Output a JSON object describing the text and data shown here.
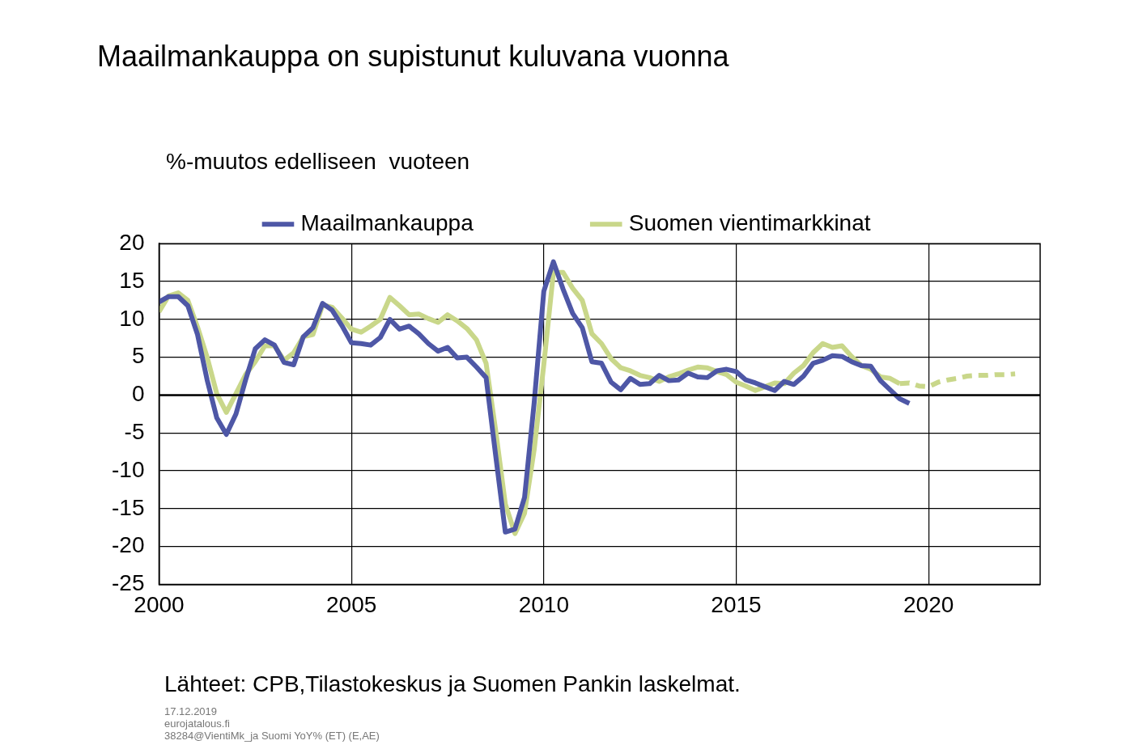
{
  "chart_data": {
    "type": "line",
    "title": "Maailmankauppa on supistunut kuluvana vuonna",
    "ylabel": "%-muutos edelliseen  vuoteen",
    "xlim": [
      2000,
      2022.9
    ],
    "xticks": [
      2000,
      2005,
      2010,
      2015,
      2020
    ],
    "ylim": [
      -25,
      20
    ],
    "yticks": [
      -25,
      -20,
      -15,
      -10,
      -5,
      0,
      5,
      10,
      15,
      20
    ],
    "grid": true,
    "legend": "top",
    "marker": "none",
    "series": [
      {
        "name": "Maailmankauppa",
        "color": "#4e57a6",
        "x": [
          2000,
          2000.25,
          2000.5,
          2000.75,
          2001,
          2001.25,
          2001.5,
          2001.75,
          2002,
          2002.25,
          2002.5,
          2002.75,
          2003,
          2003.25,
          2003.5,
          2003.75,
          2004,
          2004.25,
          2004.5,
          2004.75,
          2005,
          2005.25,
          2005.5,
          2005.75,
          2006,
          2006.25,
          2006.5,
          2006.75,
          2007,
          2007.25,
          2007.5,
          2007.75,
          2008,
          2008.25,
          2008.5,
          2008.75,
          2009,
          2009.25,
          2009.5,
          2009.75,
          2010,
          2010.25,
          2010.5,
          2010.75,
          2011,
          2011.25,
          2011.5,
          2011.75,
          2012,
          2012.25,
          2012.5,
          2012.75,
          2013,
          2013.25,
          2013.5,
          2013.75,
          2014,
          2014.25,
          2014.5,
          2014.75,
          2015,
          2015.25,
          2015.5,
          2015.75,
          2016,
          2016.25,
          2016.5,
          2016.75,
          2017,
          2017.25,
          2017.5,
          2017.75,
          2018,
          2018.25,
          2018.5,
          2018.75,
          2019,
          2019.25,
          2019.5
        ],
        "values": [
          12.3,
          13.0,
          13.0,
          11.8,
          8.0,
          2.0,
          -3.0,
          -5.2,
          -2.5,
          2.0,
          6.1,
          7.3,
          6.6,
          4.3,
          4.0,
          7.7,
          8.9,
          12.1,
          11.2,
          9.2,
          6.9,
          6.8,
          6.6,
          7.6,
          10.0,
          8.7,
          9.1,
          8.1,
          6.8,
          5.8,
          6.3,
          4.9,
          5.0,
          3.7,
          2.3,
          -8.0,
          -18.1,
          -17.7,
          -13.5,
          -1.0,
          13.7,
          17.6,
          14.0,
          10.8,
          8.9,
          4.4,
          4.2,
          1.7,
          0.7,
          2.2,
          1.4,
          1.5,
          2.6,
          1.9,
          2.0,
          2.9,
          2.4,
          2.3,
          3.2,
          3.4,
          3.1,
          2.0,
          1.6,
          1.1,
          0.6,
          1.8,
          1.4,
          2.5,
          4.2,
          4.6,
          5.2,
          5.1,
          4.4,
          3.9,
          3.8,
          1.9,
          0.7,
          -0.5,
          -1.1
        ]
      },
      {
        "name": "Suomen vientimarkkinat",
        "color": "#c9d78a",
        "x": [
          2000,
          2000.25,
          2000.5,
          2000.75,
          2001,
          2001.25,
          2001.5,
          2001.75,
          2002,
          2002.25,
          2002.5,
          2002.75,
          2003,
          2003.25,
          2003.5,
          2003.75,
          2004,
          2004.25,
          2004.5,
          2004.75,
          2005,
          2005.25,
          2005.5,
          2005.75,
          2006,
          2006.25,
          2006.5,
          2006.75,
          2007,
          2007.25,
          2007.5,
          2007.75,
          2008,
          2008.25,
          2008.5,
          2008.75,
          2009,
          2009.25,
          2009.5,
          2009.75,
          2010,
          2010.25,
          2010.5,
          2010.75,
          2011,
          2011.25,
          2011.5,
          2011.75,
          2012,
          2012.25,
          2012.5,
          2012.75,
          2013,
          2013.25,
          2013.5,
          2013.75,
          2014,
          2014.25,
          2014.5,
          2014.75,
          2015,
          2015.25,
          2015.5,
          2015.75,
          2016,
          2016.25,
          2016.5,
          2016.75,
          2017,
          2017.25,
          2017.5,
          2017.75,
          2018,
          2018.25,
          2018.5,
          2018.75,
          2019,
          2019.25
        ],
        "values": [
          11.0,
          13.1,
          13.5,
          12.5,
          9.0,
          5.0,
          0.2,
          -2.3,
          0.2,
          2.7,
          4.4,
          6.5,
          6.5,
          4.6,
          5.6,
          7.7,
          8.0,
          11.9,
          11.6,
          10.2,
          8.7,
          8.3,
          9.1,
          10.0,
          12.9,
          11.8,
          10.6,
          10.7,
          10.1,
          9.6,
          10.6,
          9.8,
          8.8,
          7.3,
          4.2,
          -4.7,
          -14.4,
          -18.3,
          -15.6,
          -7.2,
          4.0,
          16.2,
          16.2,
          14.1,
          12.5,
          8.1,
          6.8,
          4.8,
          3.6,
          3.2,
          2.6,
          2.3,
          1.8,
          2.4,
          2.8,
          3.3,
          3.7,
          3.6,
          3.1,
          2.7,
          1.7,
          1.2,
          0.6,
          1.1,
          1.6,
          1.5,
          2.9,
          3.9,
          5.6,
          6.8,
          6.3,
          6.5,
          5.1,
          3.9,
          3.4,
          2.4,
          2.2,
          1.5
        ]
      },
      {
        "color": "#c9d78a",
        "line_style": "dashed",
        "x": [
          2019.25,
          2019.5,
          2019.75,
          2020,
          2020.25,
          2020.5,
          2020.75,
          2021,
          2021.25,
          2021.5,
          2021.75,
          2022,
          2022.25
        ],
        "values": [
          1.5,
          1.6,
          1.2,
          1.1,
          1.7,
          2.0,
          2.2,
          2.5,
          2.6,
          2.6,
          2.7,
          2.7,
          2.8
        ]
      }
    ],
    "ref_lines": [
      {
        "axis": "y",
        "value": 0,
        "color": "#000000"
      }
    ],
    "annotations": [
      "Lähteet: CPB,Tilastokeskus ja Suomen Pankin laskelmat.",
      "17.12.2019",
      "eurojatalous.fi",
      "38284@VientiMk_ja Suomi YoY% (ET) (E,AE)"
    ]
  }
}
